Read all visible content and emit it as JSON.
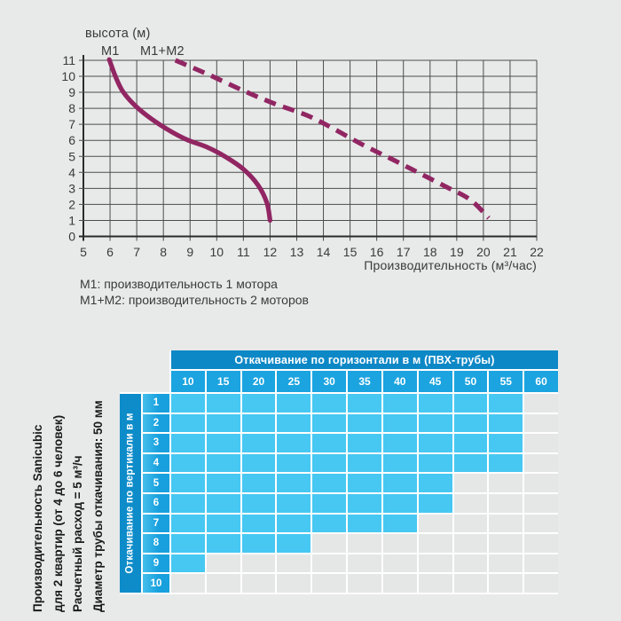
{
  "colors": {
    "page_bg": "#e8e9e9",
    "curve": "#912663",
    "grid": "#4d4d4d",
    "axis": "#2b2b2b",
    "chart_text": "#3a3a3a",
    "annotation_text": "#1a1a1a",
    "header_bg": "#0d88c6",
    "subheader_bg": "#1ba4e0",
    "strip_bg": "#0e8cc9",
    "rowhdr_from": "#45bfec",
    "rowhdr_to": "#17a0dd",
    "cell_filled": "#47c8f2",
    "cell_empty": "#e5e6e6",
    "separator": "#ffffff",
    "header_text": "#ffffff"
  },
  "chart": {
    "y_axis_title": "высота (м)",
    "x_axis_title": "Производительность (м³/час)",
    "curve_label_m1": "M1",
    "curve_label_m1m2": "M1+M2",
    "legend": [
      "M1: производительность 1 мотора",
      "M1+M2: производительность 2 моторов"
    ]
  },
  "chart_data": {
    "type": "line",
    "title": "",
    "xlabel": "Производительность (м³/час)",
    "ylabel": "высота (м)",
    "xlim": [
      5,
      22
    ],
    "ylim": [
      0,
      11
    ],
    "x_ticks": [
      5,
      6,
      7,
      8,
      9,
      10,
      11,
      12,
      13,
      14,
      15,
      16,
      17,
      18,
      19,
      20,
      21,
      22
    ],
    "y_ticks": [
      0,
      1,
      2,
      3,
      4,
      5,
      6,
      7,
      8,
      9,
      10,
      11
    ],
    "grid": true,
    "legend_position": "below",
    "series": [
      {
        "name": "M1",
        "style": "solid",
        "points": [
          [
            5.97,
            11.05
          ],
          [
            6.2,
            10
          ],
          [
            6.5,
            9
          ],
          [
            7.05,
            8
          ],
          [
            7.85,
            7
          ],
          [
            8.8,
            6.1
          ],
          [
            9.6,
            5.6
          ],
          [
            10.3,
            5.0
          ],
          [
            11.0,
            4.2
          ],
          [
            11.55,
            3.2
          ],
          [
            11.88,
            2.1
          ],
          [
            12.0,
            1.0
          ]
        ]
      },
      {
        "name": "M1+M2",
        "style": "dashed",
        "points": [
          [
            8.45,
            11.0
          ],
          [
            9.7,
            10.1
          ],
          [
            11.0,
            9.1
          ],
          [
            12.15,
            8.3
          ],
          [
            13.4,
            7.55
          ],
          [
            14.3,
            6.8
          ],
          [
            15.5,
            5.7
          ],
          [
            16.6,
            4.8
          ],
          [
            17.6,
            3.95
          ],
          [
            18.6,
            3.1
          ],
          [
            19.5,
            2.3
          ],
          [
            20.2,
            1.15
          ]
        ]
      }
    ]
  },
  "table": {
    "annotation_lines": [
      "Производительность Sanicubic",
      "для 2 квартир (от 4 до 6 человек)",
      "Расчетный расход = 5 м³/ч",
      "Диаметр трубы откачивания: 50 мм"
    ],
    "header_title": "Откачивание по горизонтали в м (ПВХ-трубы)",
    "col_headers": [
      "10",
      "15",
      "20",
      "25",
      "30",
      "35",
      "40",
      "45",
      "50",
      "55",
      "60"
    ],
    "row_axis_title": "Откачивание по вертикали в м",
    "row_headers": [
      "1",
      "2",
      "3",
      "4",
      "5",
      "6",
      "7",
      "8",
      "9",
      "10"
    ],
    "filled_per_row": [
      10,
      10,
      10,
      10,
      8,
      8,
      7,
      4,
      1,
      0
    ]
  }
}
